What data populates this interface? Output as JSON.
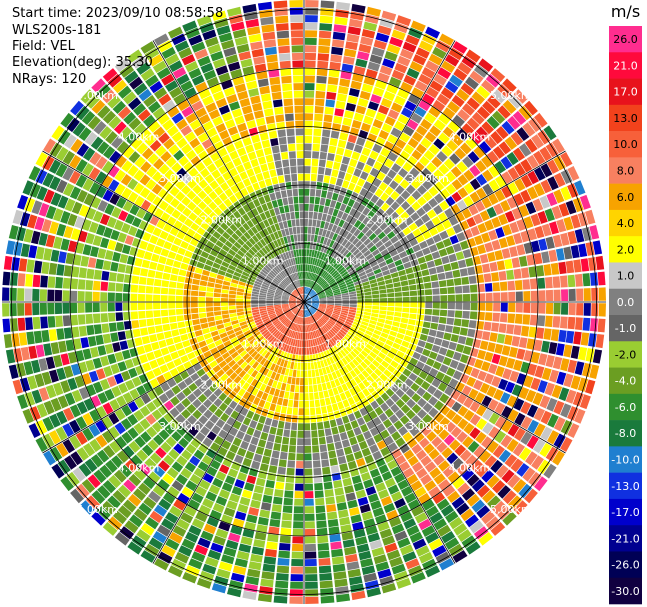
{
  "header": {
    "start_time": "Start time: 2023/09/10 08:58:58",
    "instrument": "WLS200s-181",
    "field": "Field: VEL",
    "elevation": "Elevation(deg): 35.30",
    "nrays": "NRays: 120"
  },
  "chart_data": {
    "type": "heatmap",
    "projection": "polar-ppi",
    "nrays": 120,
    "range_ring_labels": [
      "1.00km",
      "2.00km",
      "3.00km",
      "4.00km",
      "5.00km"
    ],
    "colorbar": {
      "unit": "m/s",
      "bins": [
        {
          "label": "26.0",
          "color": "#ff2d8f"
        },
        {
          "label": "21.0",
          "color": "#ff0a3c"
        },
        {
          "label": "17.0",
          "color": "#e8121c"
        },
        {
          "label": "13.0",
          "color": "#f2421c"
        },
        {
          "label": "10.0",
          "color": "#f7603a"
        },
        {
          "label": "8.0",
          "color": "#f88060"
        },
        {
          "label": "6.0",
          "color": "#f7a300"
        },
        {
          "label": "4.0",
          "color": "#ffd400"
        },
        {
          "label": "2.0",
          "color": "#ffff00"
        },
        {
          "label": "1.0",
          "color": "#c8c8c8"
        },
        {
          "label": "0.0",
          "color": "#808080"
        },
        {
          "label": "-1.0",
          "color": "#656565"
        },
        {
          "label": "-2.0",
          "color": "#9acd32"
        },
        {
          "label": "-4.0",
          "color": "#6b9e22"
        },
        {
          "label": "-6.0",
          "color": "#2f8f2f"
        },
        {
          "label": "-8.0",
          "color": "#1a7a3c"
        },
        {
          "label": "-10.0",
          "color": "#1f7fd0"
        },
        {
          "label": "-13.0",
          "color": "#1030e0"
        },
        {
          "label": "-17.0",
          "color": "#0000cc"
        },
        {
          "label": "-21.0",
          "color": "#000090"
        },
        {
          "label": "-26.0",
          "color": "#000055"
        },
        {
          "label": "-30.0",
          "color": "#100040"
        }
      ]
    }
  }
}
